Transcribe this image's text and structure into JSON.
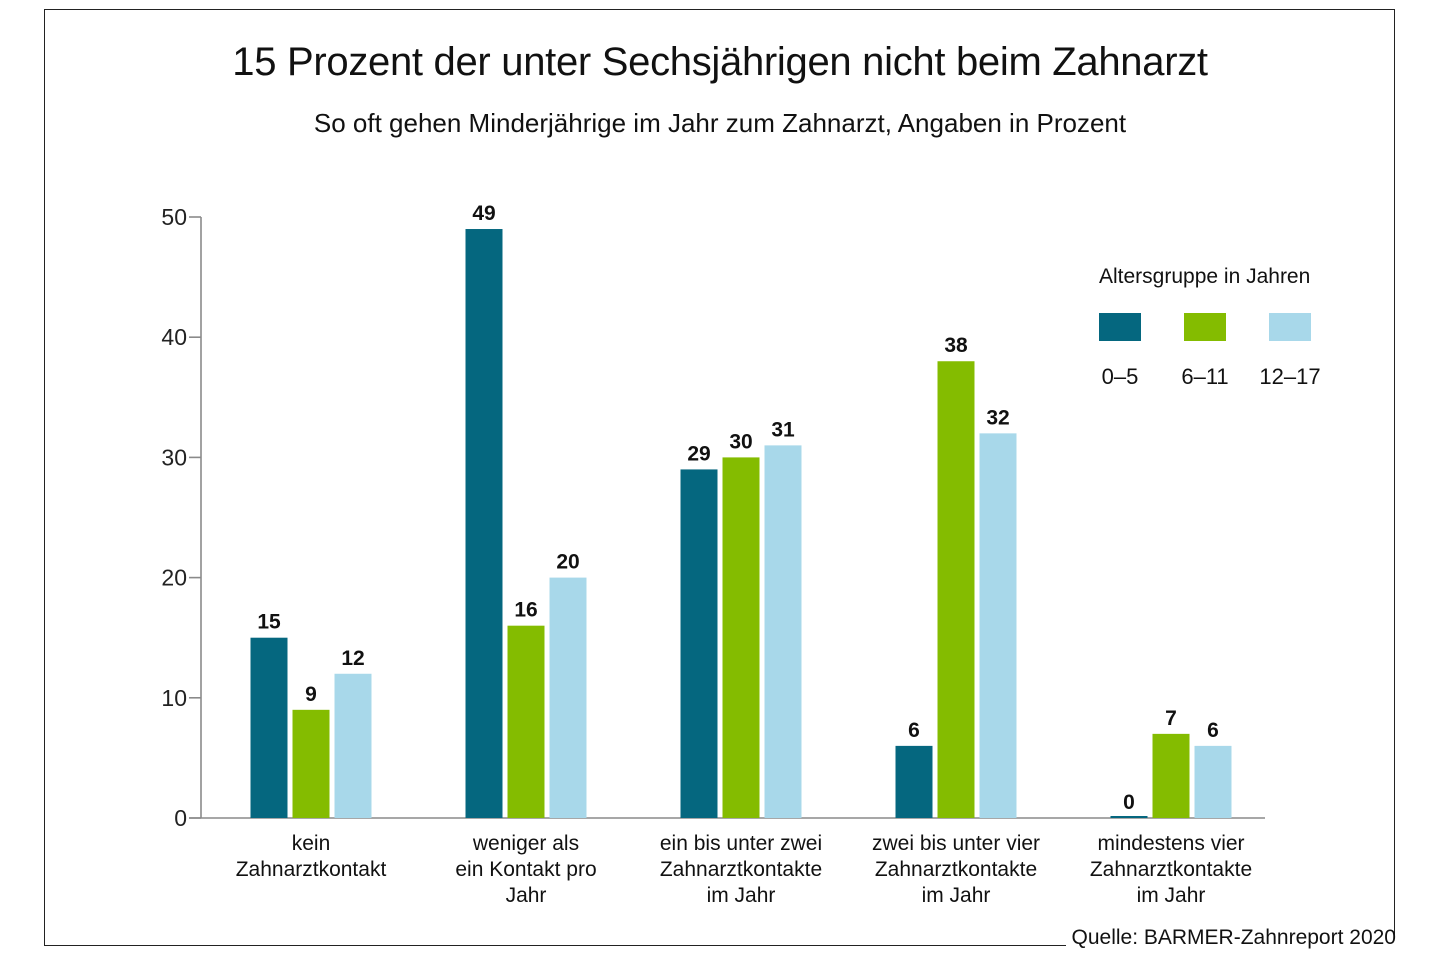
{
  "chart_data": {
    "type": "bar",
    "title": "15 Prozent der unter Sechsjährigen nicht beim Zahnarzt",
    "subtitle": "So oft gehen Minderjährige im Jahr zum Zahnarzt, Angaben in Prozent",
    "xlabel": "",
    "ylabel": "",
    "ylim": [
      0,
      50
    ],
    "yticks": [
      0,
      10,
      20,
      30,
      40,
      50
    ],
    "grid": false,
    "categories": [
      [
        "kein",
        "Zahnarztkontakt"
      ],
      [
        "weniger als",
        "ein Kontakt pro",
        "Jahr"
      ],
      [
        "ein bis unter zwei",
        "Zahnarztkontakte",
        "im Jahr"
      ],
      [
        "zwei bis unter vier",
        "Zahnarztkontakte",
        "im Jahr"
      ],
      [
        "mindestens vier",
        "Zahnarztkontakte",
        "im Jahr"
      ]
    ],
    "series": [
      {
        "name": "0–5",
        "color": "#05677f",
        "values": [
          15,
          49,
          29,
          6,
          0
        ]
      },
      {
        "name": "6–11",
        "color": "#84bc00",
        "values": [
          9,
          16,
          30,
          38,
          7
        ]
      },
      {
        "name": "12–17",
        "color": "#a8d8ea",
        "values": [
          12,
          20,
          31,
          32,
          6
        ]
      }
    ],
    "legend": {
      "title": "Altersgruppe in Jahren",
      "placement": "top-right"
    },
    "source": "Quelle: BARMER-Zahnreport 2020"
  }
}
